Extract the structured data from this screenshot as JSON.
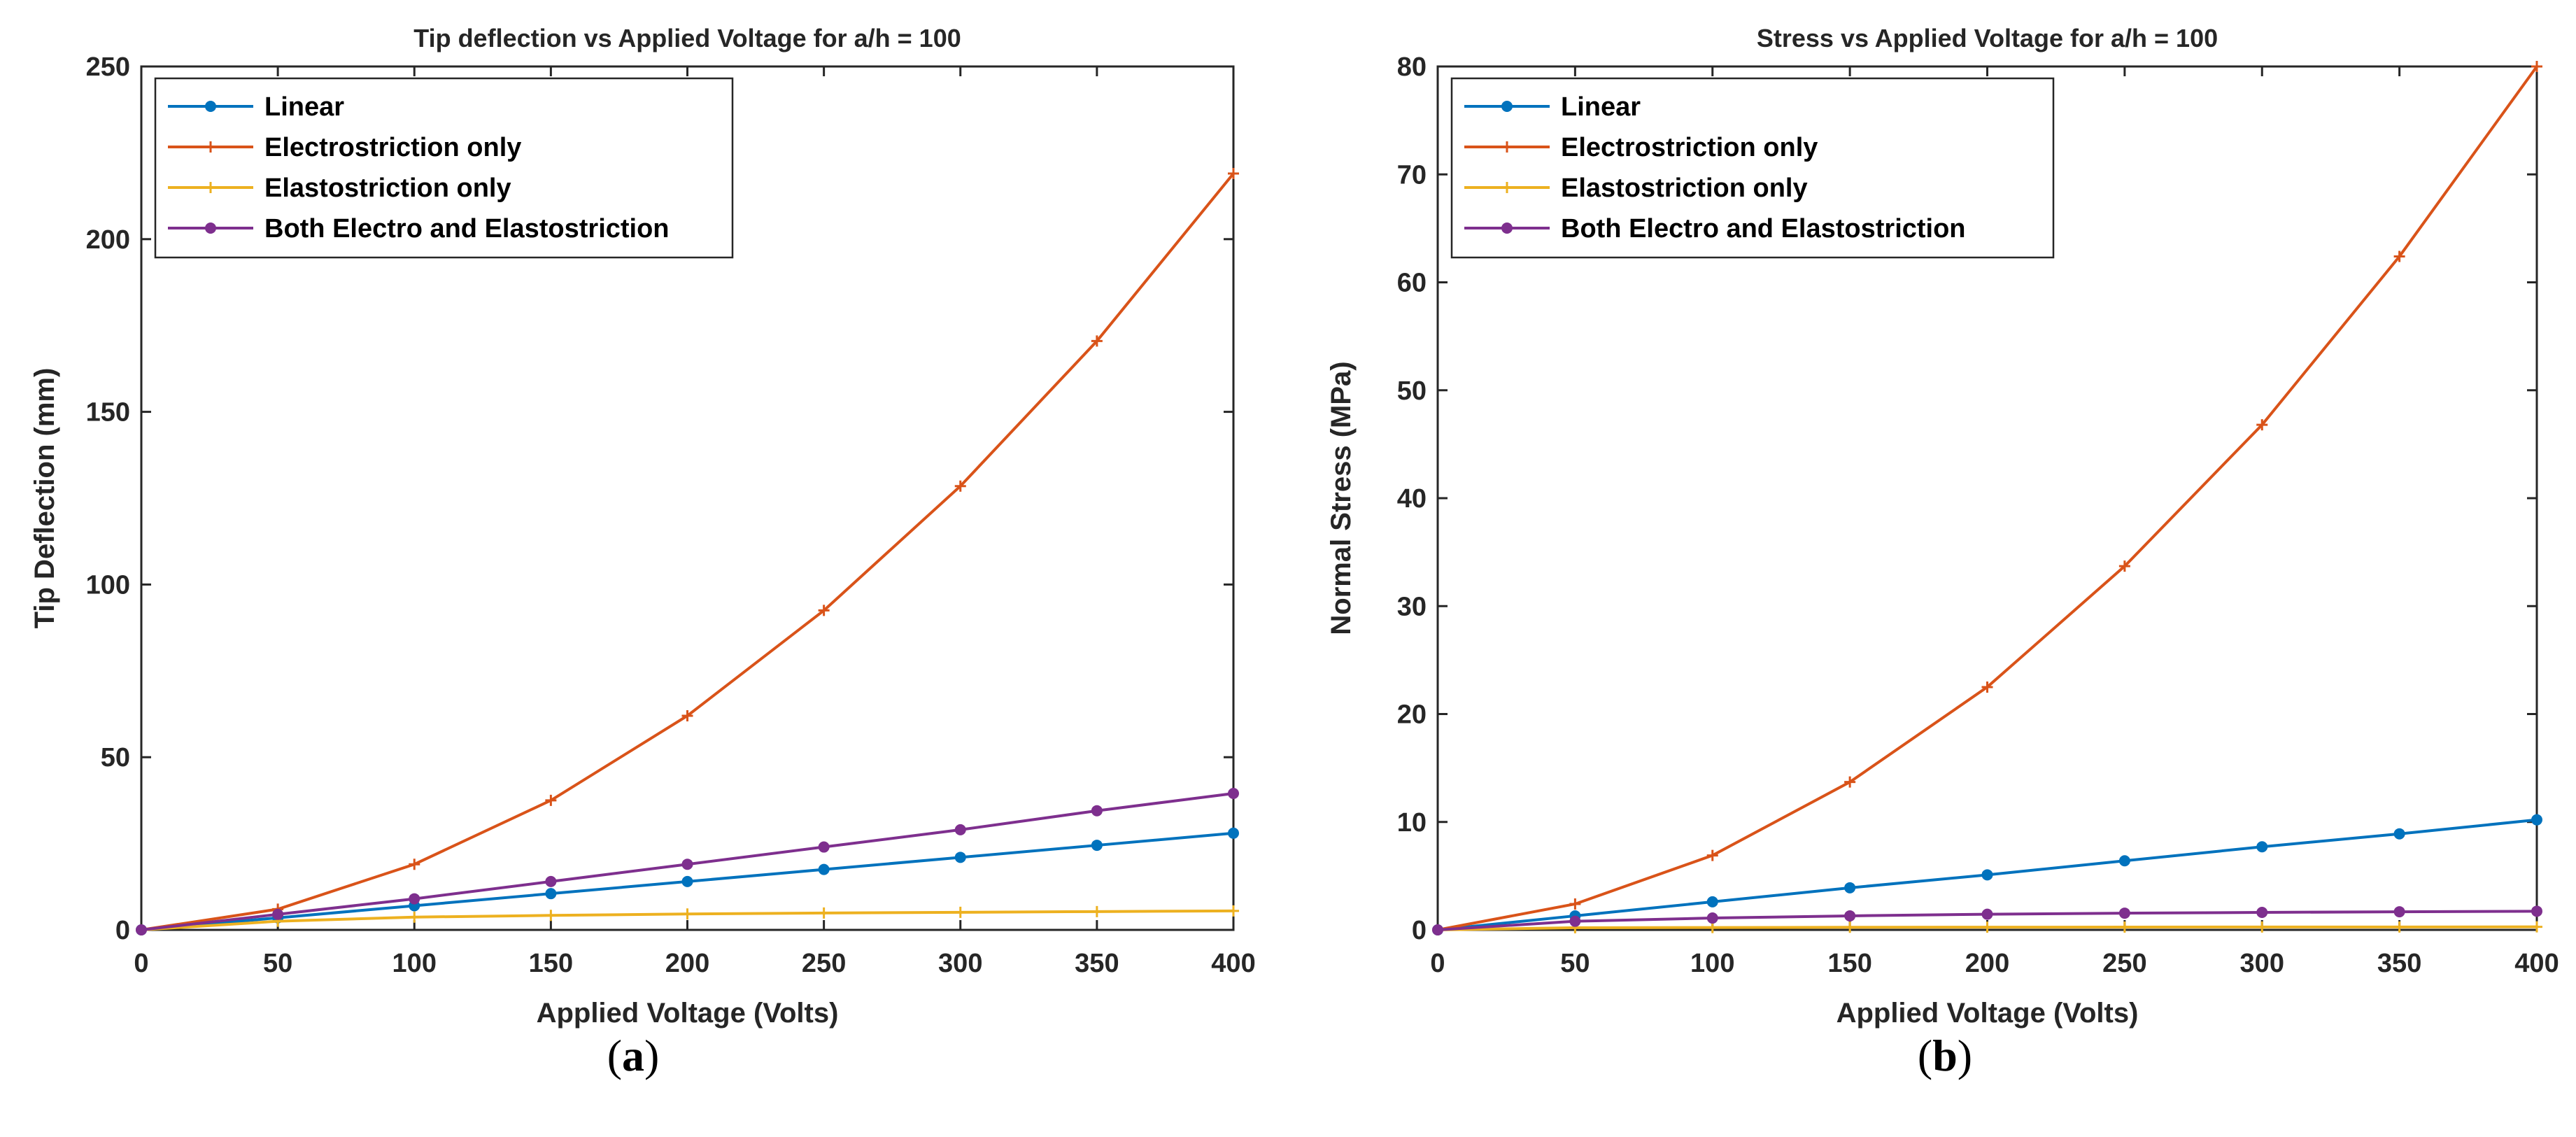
{
  "colors": {
    "linear": "#0072BD",
    "electro": "#D95319",
    "elasto": "#EDB120",
    "both": "#7E2F8E",
    "axis": "#262626",
    "background": "#ffffff"
  },
  "chart_data": [
    {
      "type": "line",
      "title": "Tip deflection vs Applied Voltage for a/h = 100",
      "xlabel": "Applied Voltage (Volts)",
      "ylabel": "Tip Deflection (mm)",
      "xlim": [
        0,
        400
      ],
      "ylim": [
        0,
        250
      ],
      "xticks": [
        0,
        50,
        100,
        150,
        200,
        250,
        300,
        350,
        400
      ],
      "yticks": [
        0,
        50,
        100,
        150,
        200,
        250
      ],
      "legend": "top-left",
      "grid": false,
      "caption": {
        "open": "(",
        "letter": "a",
        "close": ")"
      },
      "x": [
        0,
        50,
        100,
        150,
        200,
        250,
        300,
        350,
        400
      ],
      "series": [
        {
          "name": "Linear",
          "key": "linear",
          "marker": "dot",
          "values": [
            0,
            3.5,
            7,
            10.5,
            14,
            17.5,
            21,
            24.5,
            28
          ]
        },
        {
          "name": "Electrostriction only",
          "key": "electro",
          "marker": "plus",
          "values": [
            0,
            6,
            19,
            37.5,
            62,
            92.5,
            128.5,
            170.5,
            219
          ]
        },
        {
          "name": "Elastostriction only",
          "key": "elasto",
          "marker": "plus",
          "values": [
            0,
            2.5,
            3.7,
            4.2,
            4.6,
            4.9,
            5.1,
            5.3,
            5.5
          ]
        },
        {
          "name": "Both Electro and Elastostriction",
          "key": "both",
          "marker": "dot",
          "values": [
            0,
            4.5,
            9,
            14,
            19,
            24,
            29,
            34.5,
            39.5
          ]
        }
      ]
    },
    {
      "type": "line",
      "title": "Stress vs Applied Voltage for a/h = 100",
      "xlabel": "Applied Voltage (Volts)",
      "ylabel": "Normal Stress (MPa)",
      "xlim": [
        0,
        400
      ],
      "ylim": [
        0,
        80
      ],
      "xticks": [
        0,
        50,
        100,
        150,
        200,
        250,
        300,
        350,
        400
      ],
      "yticks": [
        0,
        10,
        20,
        30,
        40,
        50,
        60,
        70,
        80
      ],
      "legend": "top-left",
      "grid": false,
      "caption": {
        "open": "(",
        "letter": "b",
        "close": ")"
      },
      "x": [
        0,
        50,
        100,
        150,
        200,
        250,
        300,
        350,
        400
      ],
      "series": [
        {
          "name": "Linear",
          "key": "linear",
          "marker": "dot",
          "values": [
            0,
            1.3,
            2.6,
            3.9,
            5.1,
            6.4,
            7.7,
            8.9,
            10.2
          ]
        },
        {
          "name": "Electrostriction only",
          "key": "electro",
          "marker": "plus",
          "values": [
            0,
            2.4,
            6.9,
            13.7,
            22.5,
            33.7,
            46.8,
            62.4,
            80
          ]
        },
        {
          "name": "Elastostriction only",
          "key": "elasto",
          "marker": "plus",
          "values": [
            0,
            0.2,
            0.22,
            0.24,
            0.25,
            0.26,
            0.27,
            0.27,
            0.28
          ]
        },
        {
          "name": "Both Electro and Elastostriction",
          "key": "both",
          "marker": "dot",
          "values": [
            0,
            0.8,
            1.1,
            1.3,
            1.45,
            1.55,
            1.62,
            1.68,
            1.73
          ]
        }
      ]
    }
  ]
}
